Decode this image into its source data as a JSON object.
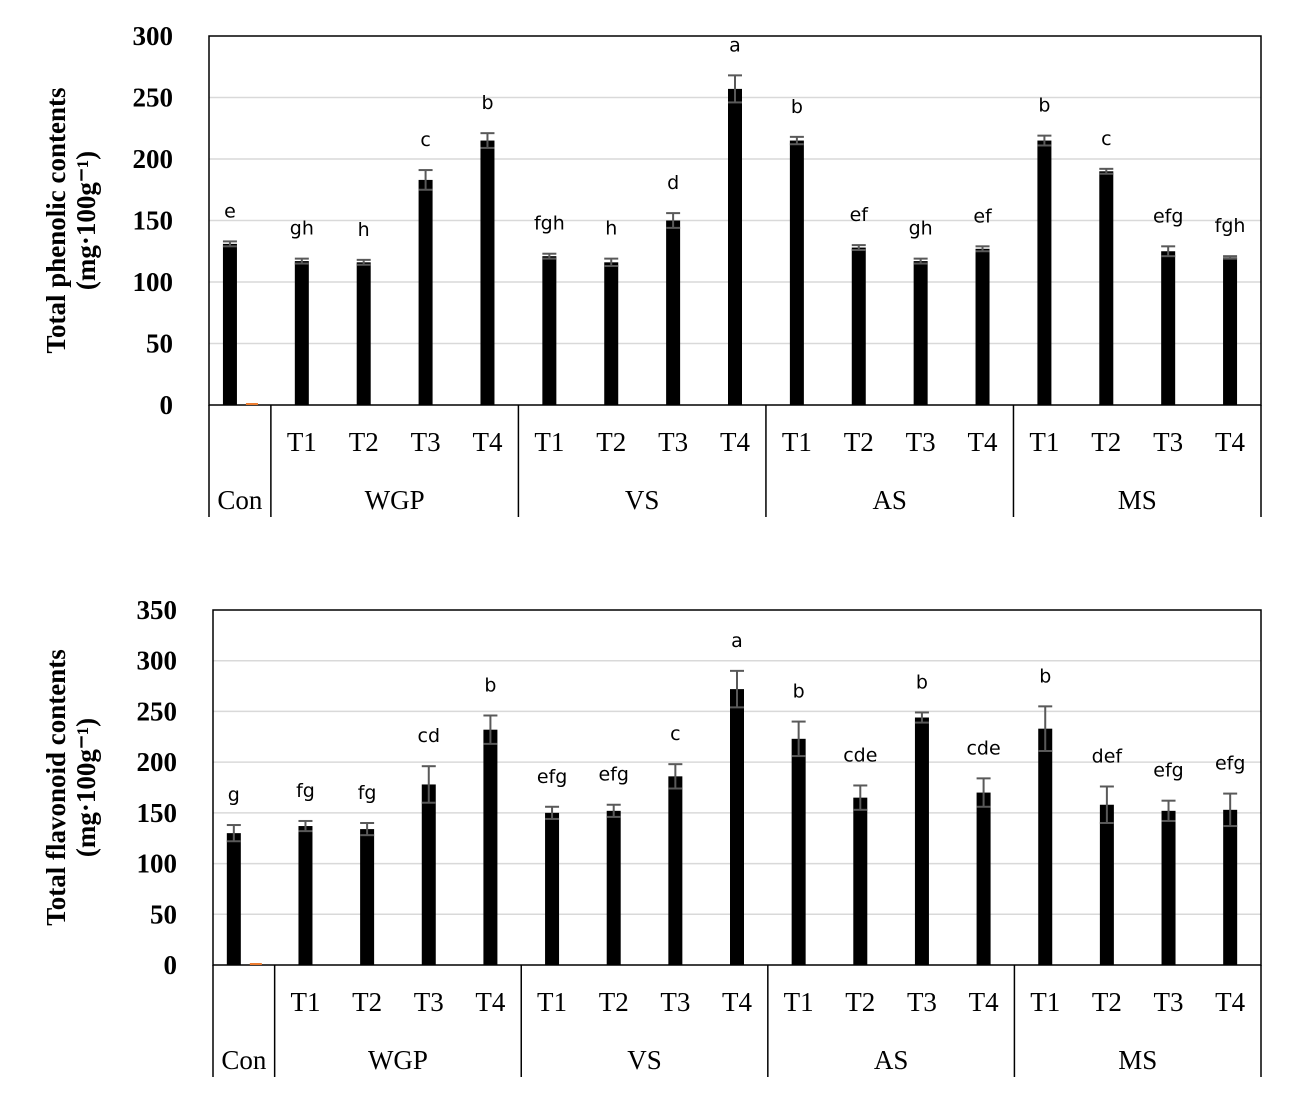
{
  "chart_data": [
    {
      "type": "bar",
      "title": "",
      "ylabel": "Total phenolic contents",
      "ylabel_unit": "(mg·100g⁻¹)",
      "ylim": [
        0,
        300
      ],
      "yticks": [
        0,
        50,
        100,
        150,
        200,
        250,
        300
      ],
      "grid": true,
      "legend": "none",
      "groups": [
        {
          "label": "Con",
          "categories": [
            ""
          ]
        },
        {
          "label": "WGP",
          "categories": [
            "T1",
            "T2",
            "T3",
            "T4"
          ]
        },
        {
          "label": "VS",
          "categories": [
            "T1",
            "T2",
            "T3",
            "T4"
          ]
        },
        {
          "label": "AS",
          "categories": [
            "T1",
            "T2",
            "T3",
            "T4"
          ]
        },
        {
          "label": "MS",
          "categories": [
            "T1",
            "T2",
            "T3",
            "T4"
          ]
        }
      ],
      "values": [
        131,
        117,
        116,
        183,
        215,
        121,
        116,
        150,
        257,
        215,
        128,
        117,
        127,
        215,
        190,
        125,
        120
      ],
      "errors": [
        2,
        2,
        2,
        8,
        6,
        2,
        3,
        6,
        11,
        3,
        2,
        2,
        2,
        4,
        2,
        4,
        1
      ],
      "letters": [
        "e",
        "gh",
        "h",
        "c",
        "b",
        "fgh",
        "h",
        "d",
        "a",
        "b",
        "ef",
        "gh",
        "ef",
        "b",
        "c",
        "efg",
        "fgh"
      ],
      "colors": {
        "bar": "#000000",
        "error": "#595959",
        "grid": "#d9d9d9",
        "marker": "#ed7d31"
      }
    },
    {
      "type": "bar",
      "title": "",
      "ylabel": "Total flavonoid contents",
      "ylabel_unit": "(mg·100g⁻¹)",
      "ylim": [
        0,
        350
      ],
      "yticks": [
        0,
        50,
        100,
        150,
        200,
        250,
        300,
        350
      ],
      "grid": true,
      "legend": "none",
      "groups": [
        {
          "label": "Con",
          "categories": [
            ""
          ]
        },
        {
          "label": "WGP",
          "categories": [
            "T1",
            "T2",
            "T3",
            "T4"
          ]
        },
        {
          "label": "VS",
          "categories": [
            "T1",
            "T2",
            "T3",
            "T4"
          ]
        },
        {
          "label": "AS",
          "categories": [
            "T1",
            "T2",
            "T3",
            "T4"
          ]
        },
        {
          "label": "MS",
          "categories": [
            "T1",
            "T2",
            "T3",
            "T4"
          ]
        }
      ],
      "values": [
        130,
        137,
        134,
        178,
        232,
        150,
        152,
        186,
        272,
        223,
        165,
        244,
        170,
        233,
        158,
        152,
        153
      ],
      "errors": [
        8,
        5,
        6,
        18,
        14,
        6,
        6,
        12,
        18,
        17,
        12,
        5,
        14,
        22,
        18,
        10,
        16
      ],
      "letters": [
        "g",
        "fg",
        "fg",
        "cd",
        "b",
        "efg",
        "efg",
        "c",
        "a",
        "b",
        "cde",
        "b",
        "cde",
        "b",
        "def",
        "efg",
        "efg"
      ],
      "colors": {
        "bar": "#000000",
        "error": "#595959",
        "grid": "#d9d9d9",
        "marker": "#ed7d31"
      }
    }
  ]
}
